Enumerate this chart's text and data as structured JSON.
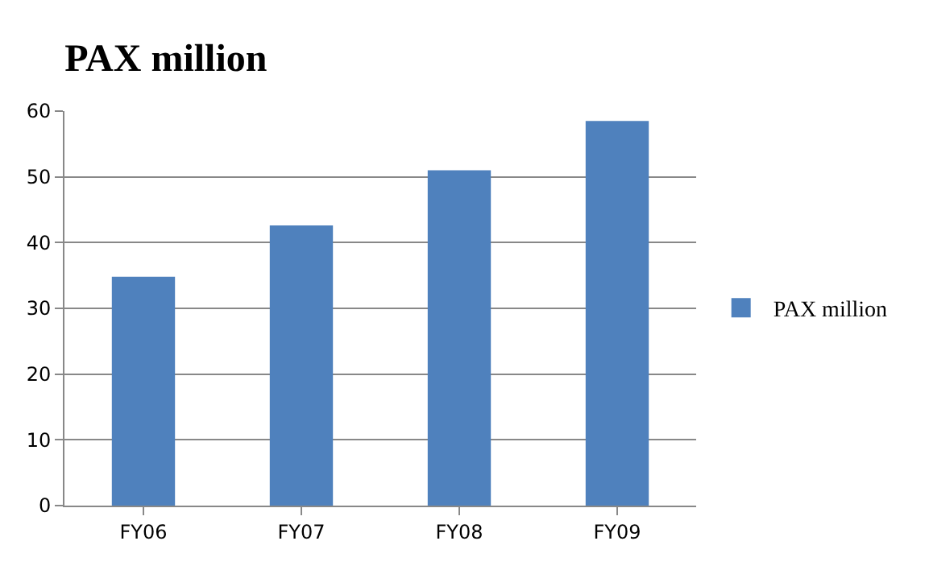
{
  "chart_data": {
    "type": "bar",
    "title": "PAX million",
    "categories": [
      "FY06",
      "FY07",
      "FY08",
      "FY09"
    ],
    "series": [
      {
        "name": "PAX million",
        "color": "#4f81bd",
        "values": [
          34.8,
          42.6,
          51,
          58.5
        ]
      }
    ],
    "ylim": [
      0,
      60
    ],
    "yticks": [
      0,
      10,
      20,
      30,
      40,
      50,
      60
    ],
    "grid": "y",
    "legend": "right"
  }
}
